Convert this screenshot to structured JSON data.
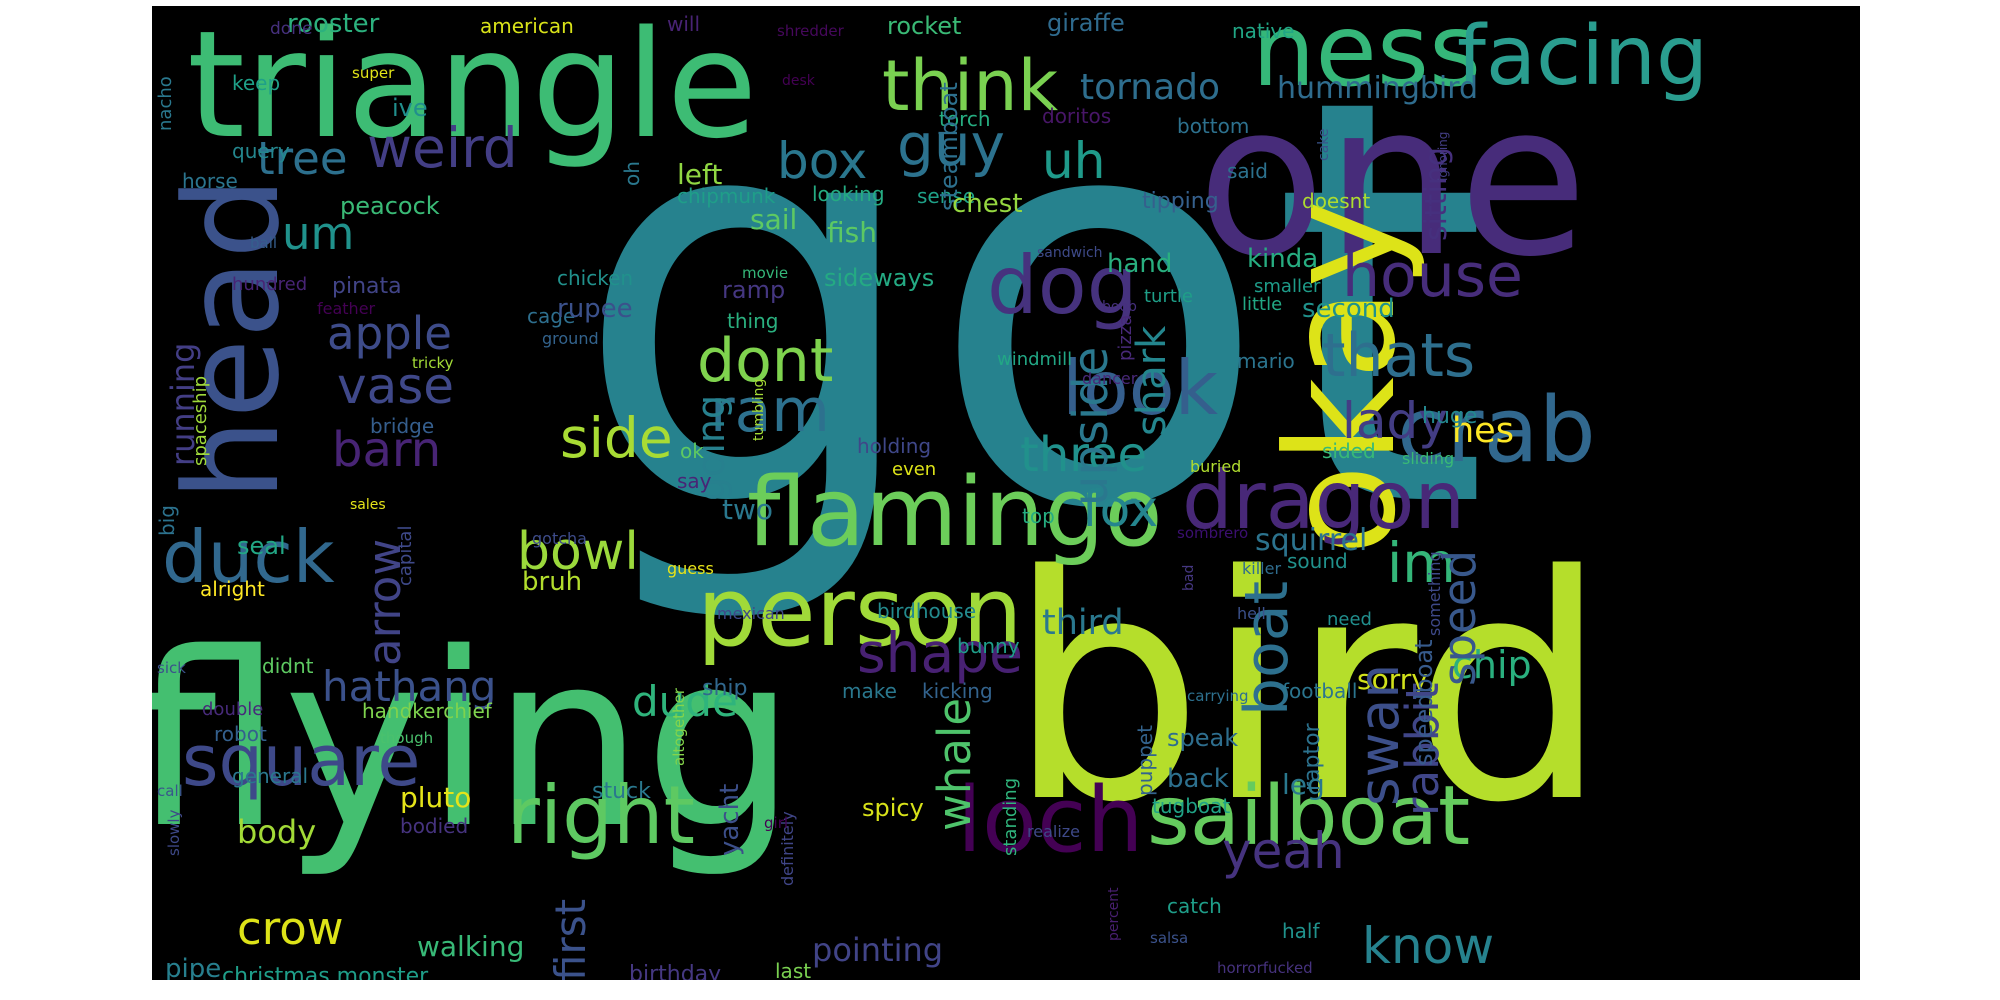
{
  "words": [
    {
      "t": "got",
      "c": "#26828e"
    },
    {
      "t": "flying",
      "c": "#44bf70"
    },
    {
      "t": "bird",
      "c": "#b5de2b"
    },
    {
      "t": "triangle",
      "c": "#3dbc74"
    },
    {
      "t": "one",
      "c": "#472c7a"
    },
    {
      "t": "ness",
      "c": "#35b779"
    },
    {
      "t": "facing",
      "c": "#2a9d8f"
    },
    {
      "t": "head",
      "c": "#3b528b"
    },
    {
      "t": "okay",
      "c": "#dde318"
    },
    {
      "t": "person",
      "c": "#a0da39"
    },
    {
      "t": "flamingo",
      "c": "#6ccd5a"
    },
    {
      "t": "dragon",
      "c": "#482878"
    },
    {
      "t": "crab",
      "c": "#31688e"
    },
    {
      "t": "loch",
      "c": "#440154"
    },
    {
      "t": "sailboat",
      "c": "#65cb5e"
    },
    {
      "t": "right",
      "c": "#5ec962"
    },
    {
      "t": "square",
      "c": "#3e4989"
    },
    {
      "t": "duck",
      "c": "#31688e"
    },
    {
      "t": "dog",
      "c": "#46327e"
    },
    {
      "t": "think",
      "c": "#7ad151"
    },
    {
      "t": "weird",
      "c": "#433e85"
    },
    {
      "t": "tornado",
      "c": "#2e6e8e"
    },
    {
      "t": "hummingbird",
      "c": "#2f6c8e"
    },
    {
      "t": "guy",
      "c": "#2c728e"
    },
    {
      "t": "tree",
      "c": "#2d708e"
    },
    {
      "t": "box",
      "c": "#2a778e"
    },
    {
      "t": "um",
      "c": "#20928c"
    },
    {
      "t": "uh",
      "c": "#1f9a8a"
    },
    {
      "t": "house",
      "c": "#472d7b"
    },
    {
      "t": "thats",
      "c": "#2e6f8e"
    },
    {
      "t": "look",
      "c": "#355f8d"
    },
    {
      "t": "dont",
      "c": "#7fd34e"
    },
    {
      "t": "ram",
      "c": "#2d718e"
    },
    {
      "t": "apple",
      "c": "#3e4c8a"
    },
    {
      "t": "vase",
      "c": "#3f4889"
    },
    {
      "t": "barn",
      "c": "#482475"
    },
    {
      "t": "side",
      "c": "#a8db34"
    },
    {
      "t": "three",
      "c": "#21918c"
    },
    {
      "t": "lady",
      "c": "#433d84"
    },
    {
      "t": "fox",
      "c": "#25858e"
    },
    {
      "t": "hes",
      "c": "#fde725"
    },
    {
      "t": "bowl",
      "c": "#9bd93c"
    },
    {
      "t": "im",
      "c": "#34b679"
    },
    {
      "t": "shape",
      "c": "#482173"
    },
    {
      "t": "third",
      "c": "#2a788e"
    },
    {
      "t": "squirrel",
      "c": "#2c738e"
    },
    {
      "t": "hathang",
      "c": "#3b518b"
    },
    {
      "t": "dude",
      "c": "#2fb47c"
    },
    {
      "t": "chip",
      "c": "#2ab07f"
    },
    {
      "t": "sorry",
      "c": "#d2e21b"
    },
    {
      "t": "speed",
      "c": "#38588c"
    },
    {
      "t": "rabbit",
      "c": "#404688"
    },
    {
      "t": "swan",
      "c": "#3c4f8a"
    },
    {
      "t": "boat",
      "c": "#2d708e"
    },
    {
      "t": "whale",
      "c": "#4ec36b"
    },
    {
      "t": "yeah",
      "c": "#46337f"
    },
    {
      "t": "know",
      "c": "#26828e"
    },
    {
      "t": "crow",
      "c": "#dde318"
    },
    {
      "t": "body",
      "c": "#a2da37"
    },
    {
      "t": "pluto",
      "c": "#e5e419"
    },
    {
      "t": "pointing",
      "c": "#414487"
    },
    {
      "t": "first",
      "c": "#3b528b"
    },
    {
      "t": "christmas monster",
      "c": "#1f9e89"
    },
    {
      "t": "birthday",
      "c": "#453882"
    },
    {
      "t": "walking",
      "c": "#38b977"
    },
    {
      "t": "pipe",
      "c": "#277f8e"
    },
    {
      "t": "arrow",
      "c": "#414487"
    },
    {
      "t": "running",
      "c": "#433e85"
    },
    {
      "t": "going",
      "c": "#27808e"
    },
    {
      "t": "upside",
      "c": "#2a788e"
    },
    {
      "t": "shark",
      "c": "#24868e"
    },
    {
      "t": "rooster",
      "c": "#2cb17e"
    },
    {
      "t": "american",
      "c": "#d8e219"
    },
    {
      "t": "will",
      "c": "#482374"
    },
    {
      "t": "rocket",
      "c": "#3aba76"
    },
    {
      "t": "giraffe",
      "c": "#2f6b8e"
    },
    {
      "t": "native",
      "c": "#21a685"
    },
    {
      "t": "shredder",
      "c": "#46085c"
    },
    {
      "t": "done",
      "c": "#46307e"
    },
    {
      "t": "super",
      "c": "#e2e418"
    },
    {
      "t": "keep",
      "c": "#1fa088"
    },
    {
      "t": "ive",
      "c": "#218f8d"
    },
    {
      "t": "query",
      "c": "#24878e"
    },
    {
      "t": "horse",
      "c": "#2b758e"
    },
    {
      "t": "peacock",
      "c": "#3aba76"
    },
    {
      "t": "left",
      "c": "#90d743"
    },
    {
      "t": "chipmunk",
      "c": "#1f9e89"
    },
    {
      "t": "looking",
      "c": "#25ab82"
    },
    {
      "t": "sail",
      "c": "#5ec962"
    },
    {
      "t": "sense",
      "c": "#1fa188"
    },
    {
      "t": "torch",
      "c": "#26ad81"
    },
    {
      "t": "doritos",
      "c": "#481668"
    },
    {
      "t": "bottom",
      "c": "#2d718e"
    },
    {
      "t": "steamboat",
      "c": "#2d708e"
    },
    {
      "t": "chest",
      "c": "#95d840"
    },
    {
      "t": "fish",
      "c": "#5cc863"
    },
    {
      "t": "sideways",
      "c": "#24aa83"
    },
    {
      "t": "tipping",
      "c": "#35608d"
    },
    {
      "t": "said",
      "c": "#2c728e"
    },
    {
      "t": "doesnt",
      "c": "#addc30"
    },
    {
      "t": "sitting",
      "c": "#46307e"
    },
    {
      "t": "hand",
      "c": "#29af7f"
    },
    {
      "t": "kinda",
      "c": "#27ad81"
    },
    {
      "t": "turtle",
      "c": "#1f9f88"
    },
    {
      "t": "smaller",
      "c": "#1e9c89"
    },
    {
      "t": "second",
      "c": "#20928c"
    },
    {
      "t": "little",
      "c": "#22a884"
    },
    {
      "t": "pizza",
      "c": "#482979"
    },
    {
      "t": "windmill",
      "c": "#22a785"
    },
    {
      "t": "cage",
      "c": "#2e6f8e"
    },
    {
      "t": "chicken",
      "c": "#21918c"
    },
    {
      "t": "ramp",
      "c": "#453781"
    },
    {
      "t": "thing",
      "c": "#2ab07f"
    },
    {
      "t": "rupee",
      "c": "#3b518b"
    },
    {
      "t": "bridge",
      "c": "#355e8d"
    },
    {
      "t": "pinata",
      "c": "#414487"
    },
    {
      "t": "hundred",
      "c": "#482475"
    },
    {
      "t": "feather",
      "c": "#440154"
    },
    {
      "t": "ground",
      "c": "#33638d"
    },
    {
      "t": "tricky",
      "c": "#a2da37"
    },
    {
      "t": "movie",
      "c": "#35b779"
    },
    {
      "t": "sandwich",
      "c": "#3e4a89"
    },
    {
      "t": "boob",
      "c": "#46307e"
    },
    {
      "t": "holding",
      "c": "#3f4788"
    },
    {
      "t": "even",
      "c": "#dde318"
    },
    {
      "t": "ok",
      "c": "#5ec962"
    },
    {
      "t": "say",
      "c": "#482576"
    },
    {
      "t": "two",
      "c": "#2a788e"
    },
    {
      "t": "bruh",
      "c": "#b2dd2d"
    },
    {
      "t": "gotcha",
      "c": "#3e4c8a"
    },
    {
      "t": "guess",
      "c": "#e8e419"
    },
    {
      "t": "tumbling",
      "c": "#a5db36"
    },
    {
      "t": "mario",
      "c": "#2b748e"
    },
    {
      "t": "dancer",
      "c": "#482878"
    },
    {
      "t": "huge",
      "c": "#24878e"
    },
    {
      "t": "sided",
      "c": "#38b977"
    },
    {
      "t": "buried",
      "c": "#b0dd2f"
    },
    {
      "t": "sliding",
      "c": "#3aba76"
    },
    {
      "t": "top",
      "c": "#26ad81"
    },
    {
      "t": "sombrero",
      "c": "#3b0f70"
    },
    {
      "t": "sound",
      "c": "#21918c"
    },
    {
      "t": "killer",
      "c": "#2f6c8e"
    },
    {
      "t": "bad",
      "c": "#453781"
    },
    {
      "t": "hell",
      "c": "#3b518b"
    },
    {
      "t": "need",
      "c": "#218e8d"
    },
    {
      "t": "something",
      "c": "#3e4989"
    },
    {
      "t": "speedboat",
      "c": "#375b8d"
    },
    {
      "t": "birdhouse",
      "c": "#238a8d"
    },
    {
      "t": "bunny",
      "c": "#1f9e89"
    },
    {
      "t": "mexican",
      "c": "#3f4889"
    },
    {
      "t": "kicking",
      "c": "#33638d"
    },
    {
      "t": "make",
      "c": "#2a788e"
    },
    {
      "t": "football",
      "c": "#2b758e"
    },
    {
      "t": "carrying",
      "c": "#2d708e"
    },
    {
      "t": "altogether",
      "c": "#84d44b"
    },
    {
      "t": "definitely",
      "c": "#404688"
    },
    {
      "t": "speak",
      "c": "#2e6e8e"
    },
    {
      "t": "raptor",
      "c": "#2c728e"
    },
    {
      "t": "puppet",
      "c": "#33638d"
    },
    {
      "t": "back",
      "c": "#2d708e"
    },
    {
      "t": "tugboat",
      "c": "#20a386"
    },
    {
      "t": "leg",
      "c": "#2a788e"
    },
    {
      "t": "spicy",
      "c": "#d8e219"
    },
    {
      "t": "standing",
      "c": "#2fb47c"
    },
    {
      "t": "realize",
      "c": "#3e4989"
    },
    {
      "t": "catch",
      "c": "#1f9e89"
    },
    {
      "t": "half",
      "c": "#20928c"
    },
    {
      "t": "percent",
      "c": "#481f70"
    },
    {
      "t": "salsa",
      "c": "#3b528b"
    },
    {
      "t": "horrorfucked",
      "c": "#46327e"
    },
    {
      "t": "last",
      "c": "#7ad151"
    },
    {
      "t": "yacht",
      "c": "#3c4f8a"
    },
    {
      "t": "stuck",
      "c": "#2a788e"
    },
    {
      "t": "ship",
      "c": "#31688e"
    },
    {
      "t": "girl",
      "c": "#440154"
    },
    {
      "t": "capital",
      "c": "#3e4989"
    },
    {
      "t": "seal",
      "c": "#22a785"
    },
    {
      "t": "alright",
      "c": "#fde725"
    },
    {
      "t": "sales",
      "c": "#e5e419"
    },
    {
      "t": "big",
      "c": "#2c728e"
    },
    {
      "t": "spaceship",
      "c": "#9fda3a"
    },
    {
      "t": "nacho",
      "c": "#2a788e"
    },
    {
      "t": "ball",
      "c": "#355e8d"
    },
    {
      "t": "sick",
      "c": "#3b528b"
    },
    {
      "t": "didnt",
      "c": "#5ec962"
    },
    {
      "t": "double",
      "c": "#472a7a"
    },
    {
      "t": "robot",
      "c": "#34608d"
    },
    {
      "t": "handkerchief",
      "c": "#7fd34e"
    },
    {
      "t": "though",
      "c": "#4ac16d"
    },
    {
      "t": "general",
      "c": "#2a778e"
    },
    {
      "t": "call",
      "c": "#39568c"
    },
    {
      "t": "slowly",
      "c": "#3e4989"
    },
    {
      "t": "bodied",
      "c": "#46337f"
    },
    {
      "t": "cake",
      "c": "#3a548c"
    },
    {
      "t": "ignoring",
      "c": "#433e85"
    },
    {
      "t": "desk",
      "c": "#440154"
    },
    {
      "t": "oh",
      "c": "#2a788e"
    }
  ]
}
